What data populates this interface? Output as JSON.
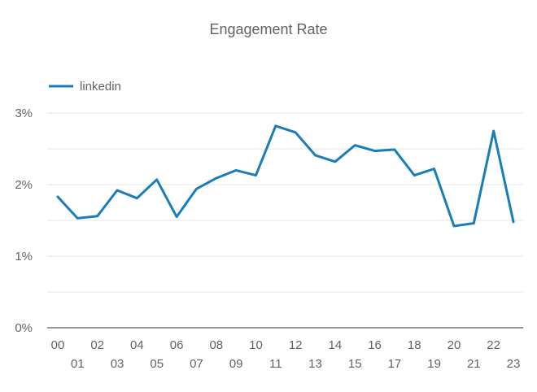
{
  "chart_data": {
    "type": "line",
    "title": "Engagement Rate",
    "xlabel": "",
    "ylabel": "",
    "categories": [
      "00",
      "01",
      "02",
      "03",
      "04",
      "05",
      "06",
      "07",
      "08",
      "09",
      "10",
      "11",
      "12",
      "13",
      "14",
      "15",
      "16",
      "17",
      "18",
      "19",
      "20",
      "21",
      "22",
      "23"
    ],
    "series": [
      {
        "name": "linkedin",
        "color": "#1a7db8",
        "values": [
          1.83,
          1.53,
          1.56,
          1.92,
          1.81,
          2.07,
          1.55,
          1.94,
          2.09,
          2.2,
          2.13,
          2.82,
          2.73,
          2.41,
          2.32,
          2.55,
          2.47,
          2.49,
          2.13,
          2.22,
          1.42,
          1.46,
          2.75,
          1.48
        ]
      }
    ],
    "ylim": [
      0,
      3
    ],
    "y_ticks": [
      {
        "value": 0,
        "label": "0%"
      },
      {
        "value": 1,
        "label": "1%"
      },
      {
        "value": 2,
        "label": "2%"
      },
      {
        "value": 3,
        "label": "3%"
      }
    ],
    "grid": true,
    "legend_position": "top-left"
  }
}
